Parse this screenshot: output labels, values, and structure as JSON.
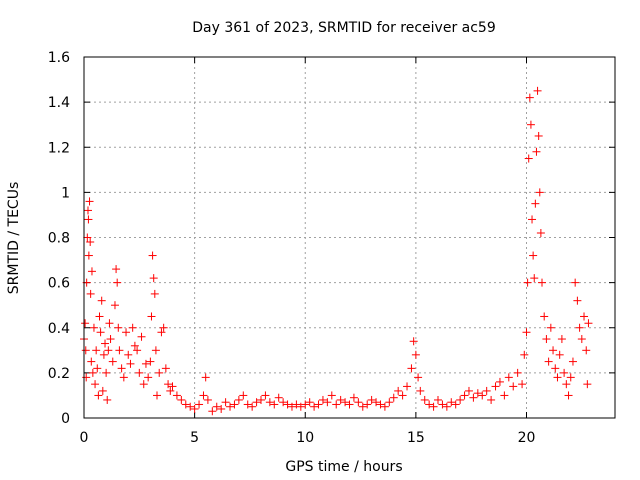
{
  "chart_data": {
    "type": "scatter",
    "title": "Day 361 of 2023, SRMTID for receiver ac59",
    "xlabel": "GPS time / hours",
    "ylabel": "SRMTID / TECUs",
    "xlim": [
      0,
      24
    ],
    "ylim": [
      0,
      1.6
    ],
    "xticks": [
      0,
      5,
      10,
      15,
      20
    ],
    "xtick_labels": [
      "0",
      "5",
      "10",
      "15",
      "20"
    ],
    "yticks": [
      0,
      0.2,
      0.4,
      0.6,
      0.8,
      1,
      1.2,
      1.4,
      1.6
    ],
    "ytick_labels": [
      "0",
      "0.2",
      "0.4",
      "0.6",
      "0.8",
      "1",
      "1.2",
      "1.4",
      "1.6"
    ],
    "grid": true,
    "marker": "+",
    "color": "#ff0000",
    "series": [
      {
        "name": "SRMTID",
        "points": [
          [
            0.0,
            0.35
          ],
          [
            0.05,
            0.42
          ],
          [
            0.08,
            0.3
          ],
          [
            0.1,
            0.18
          ],
          [
            0.12,
            0.6
          ],
          [
            0.15,
            0.8
          ],
          [
            0.18,
            0.92
          ],
          [
            0.2,
            0.88
          ],
          [
            0.22,
            0.72
          ],
          [
            0.25,
            0.96
          ],
          [
            0.28,
            0.78
          ],
          [
            0.3,
            0.55
          ],
          [
            0.33,
            0.25
          ],
          [
            0.36,
            0.65
          ],
          [
            0.4,
            0.2
          ],
          [
            0.45,
            0.4
          ],
          [
            0.5,
            0.15
          ],
          [
            0.55,
            0.3
          ],
          [
            0.6,
            0.22
          ],
          [
            0.65,
            0.1
          ],
          [
            0.7,
            0.45
          ],
          [
            0.75,
            0.38
          ],
          [
            0.8,
            0.52
          ],
          [
            0.85,
            0.12
          ],
          [
            0.9,
            0.28
          ],
          [
            0.95,
            0.33
          ],
          [
            1.0,
            0.2
          ],
          [
            1.05,
            0.08
          ],
          [
            1.1,
            0.3
          ],
          [
            1.15,
            0.42
          ],
          [
            1.2,
            0.35
          ],
          [
            1.3,
            0.25
          ],
          [
            1.4,
            0.5
          ],
          [
            1.45,
            0.66
          ],
          [
            1.5,
            0.6
          ],
          [
            1.55,
            0.4
          ],
          [
            1.6,
            0.3
          ],
          [
            1.7,
            0.22
          ],
          [
            1.8,
            0.18
          ],
          [
            1.9,
            0.38
          ],
          [
            2.0,
            0.28
          ],
          [
            2.1,
            0.24
          ],
          [
            2.2,
            0.4
          ],
          [
            2.3,
            0.32
          ],
          [
            2.4,
            0.3
          ],
          [
            2.5,
            0.2
          ],
          [
            2.6,
            0.36
          ],
          [
            2.7,
            0.15
          ],
          [
            2.8,
            0.24
          ],
          [
            2.9,
            0.18
          ],
          [
            3.0,
            0.25
          ],
          [
            3.05,
            0.45
          ],
          [
            3.1,
            0.72
          ],
          [
            3.15,
            0.62
          ],
          [
            3.2,
            0.55
          ],
          [
            3.25,
            0.3
          ],
          [
            3.3,
            0.1
          ],
          [
            3.4,
            0.2
          ],
          [
            3.5,
            0.38
          ],
          [
            3.6,
            0.4
          ],
          [
            3.7,
            0.22
          ],
          [
            3.8,
            0.15
          ],
          [
            3.9,
            0.12
          ],
          [
            4.0,
            0.14
          ],
          [
            4.2,
            0.1
          ],
          [
            4.4,
            0.08
          ],
          [
            4.6,
            0.06
          ],
          [
            4.8,
            0.05
          ],
          [
            5.0,
            0.04
          ],
          [
            5.2,
            0.06
          ],
          [
            5.4,
            0.1
          ],
          [
            5.5,
            0.18
          ],
          [
            5.6,
            0.08
          ],
          [
            5.8,
            0.03
          ],
          [
            6.0,
            0.05
          ],
          [
            6.2,
            0.04
          ],
          [
            6.4,
            0.07
          ],
          [
            6.6,
            0.05
          ],
          [
            6.8,
            0.06
          ],
          [
            7.0,
            0.08
          ],
          [
            7.2,
            0.1
          ],
          [
            7.4,
            0.06
          ],
          [
            7.6,
            0.05
          ],
          [
            7.8,
            0.07
          ],
          [
            8.0,
            0.08
          ],
          [
            8.2,
            0.1
          ],
          [
            8.4,
            0.07
          ],
          [
            8.6,
            0.06
          ],
          [
            8.8,
            0.09
          ],
          [
            9.0,
            0.07
          ],
          [
            9.2,
            0.06
          ],
          [
            9.4,
            0.05
          ],
          [
            9.6,
            0.06
          ],
          [
            9.8,
            0.05
          ],
          [
            10.0,
            0.06
          ],
          [
            10.2,
            0.07
          ],
          [
            10.4,
            0.05
          ],
          [
            10.6,
            0.06
          ],
          [
            10.8,
            0.08
          ],
          [
            11.0,
            0.07
          ],
          [
            11.2,
            0.1
          ],
          [
            11.4,
            0.06
          ],
          [
            11.6,
            0.08
          ],
          [
            11.8,
            0.07
          ],
          [
            12.0,
            0.06
          ],
          [
            12.2,
            0.09
          ],
          [
            12.4,
            0.07
          ],
          [
            12.6,
            0.05
          ],
          [
            12.8,
            0.06
          ],
          [
            13.0,
            0.08
          ],
          [
            13.2,
            0.07
          ],
          [
            13.4,
            0.06
          ],
          [
            13.6,
            0.05
          ],
          [
            13.8,
            0.07
          ],
          [
            14.0,
            0.09
          ],
          [
            14.2,
            0.12
          ],
          [
            14.4,
            0.1
          ],
          [
            14.6,
            0.14
          ],
          [
            14.8,
            0.22
          ],
          [
            14.9,
            0.34
          ],
          [
            15.0,
            0.28
          ],
          [
            15.1,
            0.18
          ],
          [
            15.2,
            0.12
          ],
          [
            15.4,
            0.08
          ],
          [
            15.6,
            0.06
          ],
          [
            15.8,
            0.05
          ],
          [
            16.0,
            0.08
          ],
          [
            16.2,
            0.06
          ],
          [
            16.4,
            0.05
          ],
          [
            16.6,
            0.07
          ],
          [
            16.8,
            0.06
          ],
          [
            17.0,
            0.08
          ],
          [
            17.2,
            0.1
          ],
          [
            17.4,
            0.12
          ],
          [
            17.6,
            0.09
          ],
          [
            17.8,
            0.11
          ],
          [
            18.0,
            0.1
          ],
          [
            18.2,
            0.12
          ],
          [
            18.4,
            0.08
          ],
          [
            18.6,
            0.14
          ],
          [
            18.8,
            0.16
          ],
          [
            19.0,
            0.1
          ],
          [
            19.2,
            0.18
          ],
          [
            19.4,
            0.14
          ],
          [
            19.6,
            0.2
          ],
          [
            19.8,
            0.15
          ],
          [
            19.9,
            0.28
          ],
          [
            20.0,
            0.38
          ],
          [
            20.05,
            0.6
          ],
          [
            20.1,
            1.15
          ],
          [
            20.15,
            1.42
          ],
          [
            20.2,
            1.3
          ],
          [
            20.25,
            0.88
          ],
          [
            20.3,
            0.72
          ],
          [
            20.35,
            0.62
          ],
          [
            20.4,
            0.95
          ],
          [
            20.45,
            1.18
          ],
          [
            20.5,
            1.45
          ],
          [
            20.55,
            1.25
          ],
          [
            20.6,
            1.0
          ],
          [
            20.65,
            0.82
          ],
          [
            20.7,
            0.6
          ],
          [
            20.8,
            0.45
          ],
          [
            20.9,
            0.35
          ],
          [
            21.0,
            0.25
          ],
          [
            21.1,
            0.4
          ],
          [
            21.2,
            0.3
          ],
          [
            21.3,
            0.22
          ],
          [
            21.4,
            0.18
          ],
          [
            21.5,
            0.28
          ],
          [
            21.6,
            0.35
          ],
          [
            21.7,
            0.2
          ],
          [
            21.8,
            0.15
          ],
          [
            21.9,
            0.1
          ],
          [
            22.0,
            0.18
          ],
          [
            22.1,
            0.25
          ],
          [
            22.2,
            0.6
          ],
          [
            22.3,
            0.52
          ],
          [
            22.4,
            0.4
          ],
          [
            22.5,
            0.35
          ],
          [
            22.6,
            0.45
          ],
          [
            22.7,
            0.3
          ],
          [
            22.75,
            0.15
          ],
          [
            22.8,
            0.42
          ]
        ]
      }
    ]
  }
}
